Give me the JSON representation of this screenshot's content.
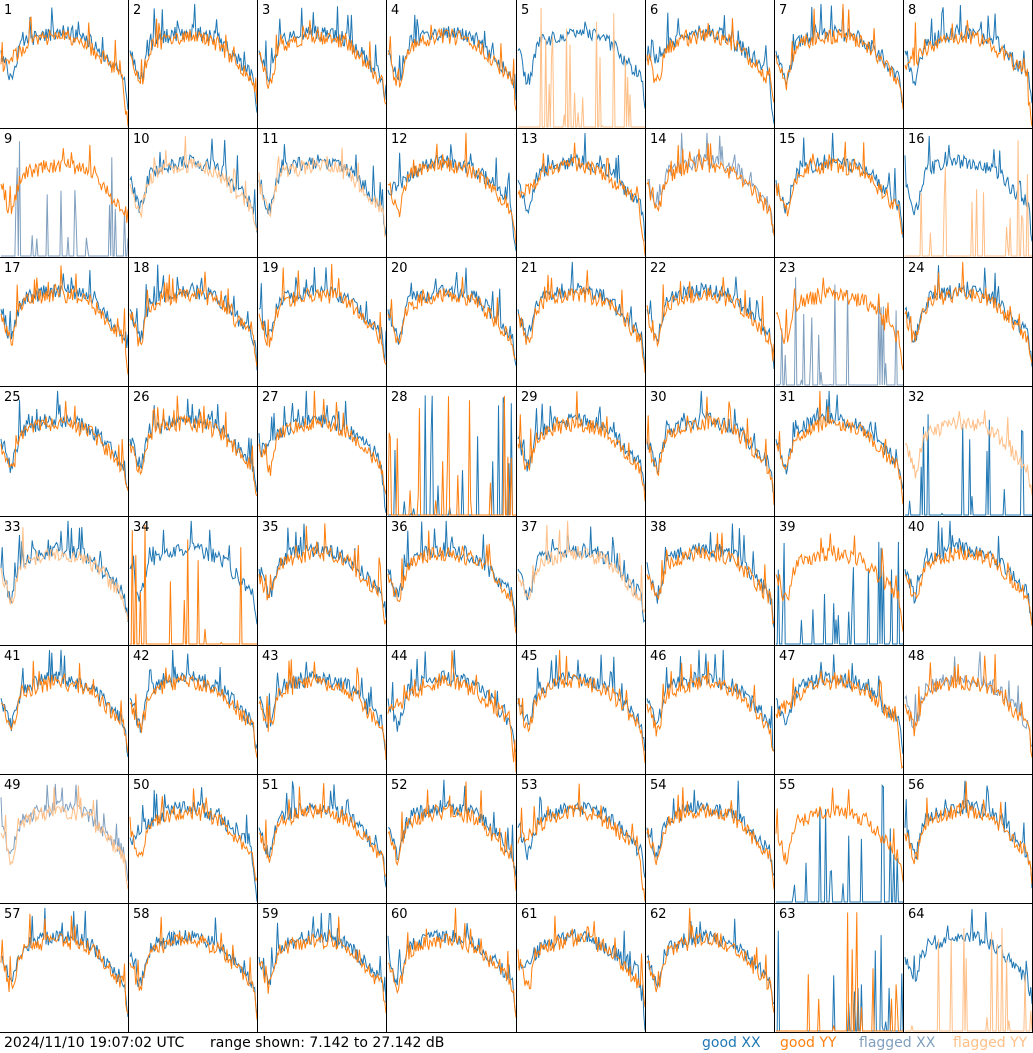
{
  "footer": {
    "timestamp": "2024/11/10 19:07:02 UTC",
    "range_text": "range shown: 7.142 to 27.142 dB"
  },
  "legend": [
    {
      "name": "good",
      "pol": "XX",
      "color": "#1f77b4"
    },
    {
      "name": "good",
      "pol": "YY",
      "color": "#ff7f0e"
    },
    {
      "name": "flagged",
      "pol": "XX",
      "color": "#7f9fbf"
    },
    {
      "name": "flagged",
      "pol": "YY",
      "color": "#ffbf87"
    }
  ],
  "colors": {
    "good_xx": "#1f77b4",
    "good_yy": "#ff7f0e",
    "flagged_xx": "#7f9fbf",
    "flagged_yy": "#ffbf87"
  },
  "chart_data": {
    "type": "line",
    "grid": "8x8 small multiples",
    "ylim": [
      7.142,
      27.142
    ],
    "y_unit": "dB",
    "panels": [
      {
        "label": "1",
        "xx": "good",
        "yy": "good",
        "shape_xx": "normal",
        "shape_yy": "droop"
      },
      {
        "label": "2",
        "xx": "good",
        "yy": "good",
        "shape_xx": "normal",
        "shape_yy": "normal"
      },
      {
        "label": "3",
        "xx": "good",
        "yy": "good",
        "shape_xx": "normal",
        "shape_yy": "normal"
      },
      {
        "label": "4",
        "xx": "good",
        "yy": "good",
        "shape_xx": "normal",
        "shape_yy": "normal"
      },
      {
        "label": "5",
        "xx": "good",
        "yy": "flagged",
        "shape_xx": "normal",
        "shape_yy": "dead"
      },
      {
        "label": "6",
        "xx": "good",
        "yy": "good",
        "shape_xx": "droop",
        "shape_yy": "normal"
      },
      {
        "label": "7",
        "xx": "good",
        "yy": "good",
        "shape_xx": "normal",
        "shape_yy": "normal"
      },
      {
        "label": "8",
        "xx": "good",
        "yy": "good",
        "shape_xx": "normal",
        "shape_yy": "droop"
      },
      {
        "label": "9",
        "xx": "flagged",
        "yy": "good",
        "shape_xx": "dead",
        "shape_yy": "normal"
      },
      {
        "label": "10",
        "xx": "good",
        "yy": "flagged",
        "shape_xx": "normal",
        "shape_yy": "normal"
      },
      {
        "label": "11",
        "xx": "good",
        "yy": "flagged",
        "shape_xx": "normal",
        "shape_yy": "normal"
      },
      {
        "label": "12",
        "xx": "good",
        "yy": "good",
        "shape_xx": "droop",
        "shape_yy": "normal"
      },
      {
        "label": "13",
        "xx": "good",
        "yy": "good",
        "shape_xx": "normal",
        "shape_yy": "droop"
      },
      {
        "label": "14",
        "xx": "flagged",
        "yy": "good",
        "shape_xx": "normal",
        "shape_yy": "normal"
      },
      {
        "label": "15",
        "xx": "good",
        "yy": "good",
        "shape_xx": "normal",
        "shape_yy": "normal"
      },
      {
        "label": "16",
        "xx": "good",
        "yy": "flagged",
        "shape_xx": "normal",
        "shape_yy": "dead"
      },
      {
        "label": "17",
        "xx": "good",
        "yy": "good",
        "shape_xx": "normal",
        "shape_yy": "normal"
      },
      {
        "label": "18",
        "xx": "good",
        "yy": "good",
        "shape_xx": "normal",
        "shape_yy": "normal"
      },
      {
        "label": "19",
        "xx": "good",
        "yy": "good",
        "shape_xx": "normal",
        "shape_yy": "normal"
      },
      {
        "label": "20",
        "xx": "good",
        "yy": "good",
        "shape_xx": "normal",
        "shape_yy": "normal"
      },
      {
        "label": "21",
        "xx": "good",
        "yy": "good",
        "shape_xx": "normal",
        "shape_yy": "normal"
      },
      {
        "label": "22",
        "xx": "good",
        "yy": "good",
        "shape_xx": "normal",
        "shape_yy": "normal"
      },
      {
        "label": "23",
        "xx": "flagged",
        "yy": "good",
        "shape_xx": "dead",
        "shape_yy": "normal"
      },
      {
        "label": "24",
        "xx": "good",
        "yy": "good",
        "shape_xx": "normal",
        "shape_yy": "normal"
      },
      {
        "label": "25",
        "xx": "good",
        "yy": "good",
        "shape_xx": "normal",
        "shape_yy": "normal"
      },
      {
        "label": "26",
        "xx": "good",
        "yy": "good",
        "shape_xx": "normal",
        "shape_yy": "normal"
      },
      {
        "label": "27",
        "xx": "good",
        "yy": "good",
        "shape_xx": "droop",
        "shape_yy": "normal"
      },
      {
        "label": "28",
        "xx": "good",
        "yy": "good",
        "shape_xx": "dead",
        "shape_yy": "dead"
      },
      {
        "label": "29",
        "xx": "good",
        "yy": "good",
        "shape_xx": "normal",
        "shape_yy": "normal"
      },
      {
        "label": "30",
        "xx": "good",
        "yy": "good",
        "shape_xx": "normal",
        "shape_yy": "normal"
      },
      {
        "label": "31",
        "xx": "good",
        "yy": "good",
        "shape_xx": "normal",
        "shape_yy": "normal"
      },
      {
        "label": "32",
        "xx": "good",
        "yy": "flagged",
        "shape_xx": "dead",
        "shape_yy": "normal"
      },
      {
        "label": "33",
        "xx": "good",
        "yy": "flagged",
        "shape_xx": "normal",
        "shape_yy": "normal"
      },
      {
        "label": "34",
        "xx": "good",
        "yy": "good",
        "shape_xx": "normal",
        "shape_yy": "dead"
      },
      {
        "label": "35",
        "xx": "good",
        "yy": "good",
        "shape_xx": "normal",
        "shape_yy": "normal"
      },
      {
        "label": "36",
        "xx": "good",
        "yy": "good",
        "shape_xx": "normal",
        "shape_yy": "normal"
      },
      {
        "label": "37",
        "xx": "good",
        "yy": "flagged",
        "shape_xx": "normal",
        "shape_yy": "normal"
      },
      {
        "label": "38",
        "xx": "good",
        "yy": "good",
        "shape_xx": "normal",
        "shape_yy": "normal"
      },
      {
        "label": "39",
        "xx": "good",
        "yy": "good",
        "shape_xx": "dead",
        "shape_yy": "normal"
      },
      {
        "label": "40",
        "xx": "good",
        "yy": "good",
        "shape_xx": "normal",
        "shape_yy": "normal"
      },
      {
        "label": "41",
        "xx": "good",
        "yy": "good",
        "shape_xx": "normal",
        "shape_yy": "normal"
      },
      {
        "label": "42",
        "xx": "good",
        "yy": "good",
        "shape_xx": "normal",
        "shape_yy": "normal"
      },
      {
        "label": "43",
        "xx": "good",
        "yy": "good",
        "shape_xx": "normal",
        "shape_yy": "normal"
      },
      {
        "label": "44",
        "xx": "good",
        "yy": "good",
        "shape_xx": "normal",
        "shape_yy": "droop"
      },
      {
        "label": "45",
        "xx": "good",
        "yy": "good",
        "shape_xx": "normal",
        "shape_yy": "normal"
      },
      {
        "label": "46",
        "xx": "good",
        "yy": "good",
        "shape_xx": "normal",
        "shape_yy": "normal"
      },
      {
        "label": "47",
        "xx": "good",
        "yy": "good",
        "shape_xx": "normal",
        "shape_yy": "droop"
      },
      {
        "label": "48",
        "xx": "flagged",
        "yy": "good",
        "shape_xx": "normal",
        "shape_yy": "normal"
      },
      {
        "label": "49",
        "xx": "flagged",
        "yy": "flagged",
        "shape_xx": "normal",
        "shape_yy": "normal"
      },
      {
        "label": "50",
        "xx": "good",
        "yy": "good",
        "shape_xx": "droop",
        "shape_yy": "normal"
      },
      {
        "label": "51",
        "xx": "good",
        "yy": "good",
        "shape_xx": "normal",
        "shape_yy": "normal"
      },
      {
        "label": "52",
        "xx": "good",
        "yy": "good",
        "shape_xx": "normal",
        "shape_yy": "normal"
      },
      {
        "label": "53",
        "xx": "good",
        "yy": "good",
        "shape_xx": "normal",
        "shape_yy": "droop"
      },
      {
        "label": "54",
        "xx": "good",
        "yy": "good",
        "shape_xx": "normal",
        "shape_yy": "normal"
      },
      {
        "label": "55",
        "xx": "good",
        "yy": "good",
        "shape_xx": "dead",
        "shape_yy": "normal"
      },
      {
        "label": "56",
        "xx": "good",
        "yy": "good",
        "shape_xx": "normal",
        "shape_yy": "normal"
      },
      {
        "label": "57",
        "xx": "good",
        "yy": "good",
        "shape_xx": "normal",
        "shape_yy": "normal"
      },
      {
        "label": "58",
        "xx": "good",
        "yy": "good",
        "shape_xx": "normal",
        "shape_yy": "normal"
      },
      {
        "label": "59",
        "xx": "good",
        "yy": "good",
        "shape_xx": "normal",
        "shape_yy": "normal"
      },
      {
        "label": "60",
        "xx": "good",
        "yy": "good",
        "shape_xx": "normal",
        "shape_yy": "normal"
      },
      {
        "label": "61",
        "xx": "good",
        "yy": "good",
        "shape_xx": "droop",
        "shape_yy": "normal"
      },
      {
        "label": "62",
        "xx": "good",
        "yy": "good",
        "shape_xx": "normal",
        "shape_yy": "normal"
      },
      {
        "label": "63",
        "xx": "good",
        "yy": "good",
        "shape_xx": "dead",
        "shape_yy": "dead"
      },
      {
        "label": "64",
        "xx": "good",
        "yy": "flagged",
        "shape_xx": "normal",
        "shape_yy": "dead"
      }
    ]
  }
}
